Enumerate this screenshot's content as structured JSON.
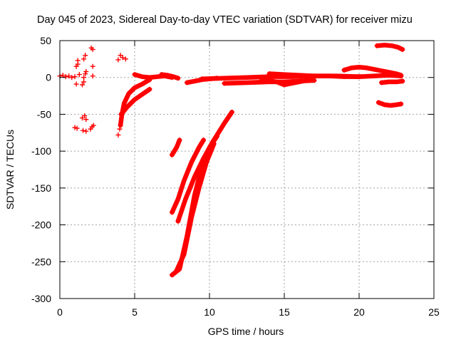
{
  "chart_data": {
    "type": "scatter",
    "title": "Day 045 of 2023, Sidereal Day-to-day VTEC variation (SDTVAR) for receiver mizu",
    "xlabel": "GPS time / hours",
    "ylabel": "SDTVAR / TECUs",
    "xlim": [
      0,
      25
    ],
    "ylim": [
      -300,
      50
    ],
    "xticks": [
      0,
      5,
      10,
      15,
      20,
      25
    ],
    "yticks": [
      50,
      0,
      -50,
      -100,
      -150,
      -200,
      -250,
      -300
    ],
    "grid": true,
    "marker": "+",
    "color": "#ff0000",
    "points": [
      [
        0.0,
        2
      ],
      [
        0.2,
        3
      ],
      [
        0.4,
        1
      ],
      [
        0.6,
        2
      ],
      [
        0.8,
        0
      ],
      [
        1.0,
        1
      ],
      [
        1.1,
        -9
      ],
      [
        1.1,
        15
      ],
      [
        1.2,
        18
      ],
      [
        1.2,
        23
      ],
      [
        1.3,
        4
      ],
      [
        1.0,
        -68
      ],
      [
        1.15,
        -69
      ],
      [
        1.5,
        -10
      ],
      [
        1.6,
        -6
      ],
      [
        1.6,
        25
      ],
      [
        1.7,
        30
      ],
      [
        1.7,
        5
      ],
      [
        1.6,
        0
      ],
      [
        1.75,
        8
      ],
      [
        1.5,
        -55
      ],
      [
        1.65,
        -52
      ],
      [
        1.75,
        -57
      ],
      [
        1.55,
        -72
      ],
      [
        1.75,
        -73
      ],
      [
        2.1,
        40
      ],
      [
        2.2,
        38
      ],
      [
        2.2,
        15
      ],
      [
        2.2,
        2
      ],
      [
        2.05,
        -70
      ],
      [
        2.15,
        -67
      ],
      [
        2.25,
        -65
      ],
      [
        3.9,
        -78
      ],
      [
        4.0,
        -70
      ],
      [
        3.9,
        24
      ],
      [
        4.05,
        30
      ],
      [
        4.2,
        27
      ],
      [
        4.4,
        25
      ]
    ],
    "tracks": [
      {
        "name": "track-a",
        "x": [
          4.05,
          4.15,
          4.3,
          4.6,
          5.0,
          5.5,
          6.0
        ],
        "y": [
          -65,
          -50,
          -35,
          -22,
          -14,
          -9,
          -3
        ]
      },
      {
        "name": "track-b",
        "x": [
          4.1,
          4.5,
          5.0,
          5.5,
          6.0
        ],
        "y": [
          -50,
          -40,
          -30,
          -23,
          -16
        ]
      },
      {
        "name": "track-c",
        "x": [
          5.0,
          5.5,
          6.0,
          6.5,
          7.0,
          7.5
        ],
        "y": [
          4,
          1,
          0,
          1,
          2,
          0
        ]
      },
      {
        "name": "track-d",
        "x": [
          6.8,
          7.2,
          7.6,
          7.9
        ],
        "y": [
          4,
          3,
          1,
          -1
        ]
      },
      {
        "name": "track-e",
        "x": [
          7.5,
          7.8,
          8.0
        ],
        "y": [
          -105,
          -95,
          -85
        ]
      },
      {
        "name": "track-f",
        "x": [
          7.5,
          7.9,
          8.3,
          8.8,
          9.3,
          9.6
        ],
        "y": [
          -183,
          -165,
          -140,
          -115,
          -95,
          -85
        ]
      },
      {
        "name": "track-g",
        "x": [
          7.9,
          8.4,
          9.0,
          9.6,
          10.2,
          11.0,
          11.5
        ],
        "y": [
          -195,
          -165,
          -135,
          -110,
          -88,
          -62,
          -47
        ]
      },
      {
        "name": "track-h",
        "x": [
          7.5,
          8.0,
          8.5,
          9.0,
          9.5,
          10.0,
          10.5
        ],
        "y": [
          -268,
          -260,
          -215,
          -160,
          -120,
          -95,
          -80
        ]
      },
      {
        "name": "track-i",
        "x": [
          7.8,
          8.3,
          8.8,
          9.3,
          9.8,
          10.3
        ],
        "y": [
          -262,
          -240,
          -190,
          -150,
          -115,
          -90
        ]
      },
      {
        "name": "track-j",
        "x": [
          8.5,
          9.0,
          9.5,
          10.0,
          10.5
        ],
        "y": [
          -7,
          -5,
          -3,
          -2,
          -1
        ]
      },
      {
        "name": "track-k",
        "x": [
          9.5,
          11.0,
          12.5,
          14.0,
          15.5,
          17.0,
          18.5,
          20.0,
          21.0,
          22.0,
          22.8
        ],
        "y": [
          -2,
          -1,
          0,
          1,
          1,
          2,
          2,
          1,
          2,
          3,
          2
        ]
      },
      {
        "name": "track-l",
        "x": [
          11.0,
          12.5,
          14.0,
          15.0,
          16.0,
          17.0
        ],
        "y": [
          -8,
          -7,
          -6,
          -6,
          -5,
          -4
        ]
      },
      {
        "name": "track-m",
        "x": [
          14.0,
          15.0,
          16.0,
          17.0,
          18.0,
          19.0,
          20.0
        ],
        "y": [
          5,
          4,
          3,
          2,
          2,
          1,
          1
        ]
      },
      {
        "name": "track-n",
        "x": [
          13.5,
          14.5,
          15.0,
          15.5,
          16.5
        ],
        "y": [
          -3,
          -6,
          -10,
          -8,
          -4
        ]
      },
      {
        "name": "track-o",
        "x": [
          19.0,
          19.5,
          20.0,
          20.5,
          21.0,
          21.5,
          22.0,
          22.5,
          22.8
        ],
        "y": [
          10,
          13,
          14,
          13,
          11,
          9,
          7,
          5,
          3
        ]
      },
      {
        "name": "track-p",
        "x": [
          21.5,
          22.0,
          22.5,
          22.9
        ],
        "y": [
          -7,
          -6,
          -6,
          -5
        ]
      },
      {
        "name": "track-q",
        "x": [
          21.2,
          21.7,
          22.2,
          22.6,
          22.9
        ],
        "y": [
          43,
          44,
          43,
          41,
          38
        ]
      },
      {
        "name": "track-r",
        "x": [
          21.3,
          21.7,
          22.1,
          22.5,
          22.8
        ],
        "y": [
          -34,
          -37,
          -38,
          -37,
          -36
        ]
      }
    ]
  }
}
